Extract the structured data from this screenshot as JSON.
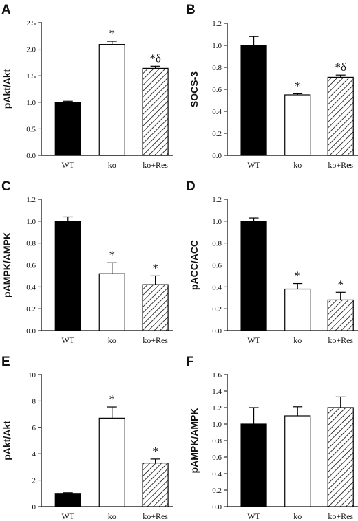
{
  "colors": {
    "bar_wt": "#000000",
    "bar_ko": "#ffffff",
    "bar_ko_res": "hatched",
    "axis": "#000000"
  },
  "chart_data": [
    {
      "panel": "A",
      "type": "bar",
      "categories": [
        "WT",
        "ko",
        "ko+Res"
      ],
      "values": [
        0.99,
        2.09,
        1.64
      ],
      "errors": [
        0.03,
        0.06,
        0.04
      ],
      "annotations": [
        "",
        "*",
        "*δ"
      ],
      "ylabel": "pAkt/Akt",
      "ylim": [
        0,
        2.5
      ],
      "yticks": [
        "0.0",
        "0.5",
        "1.0",
        "1.5",
        "2.0",
        "2.5"
      ]
    },
    {
      "panel": "B",
      "type": "bar",
      "categories": [
        "WT",
        "ko",
        "ko+Res"
      ],
      "values": [
        1.0,
        0.55,
        0.71
      ],
      "errors": [
        0.08,
        0.01,
        0.02
      ],
      "annotations": [
        "",
        "*",
        "*δ"
      ],
      "ylabel": "SOCS-3",
      "ylim": [
        0,
        1.2
      ],
      "yticks": [
        "0.0",
        "0.2",
        "0.4",
        "0.6",
        "0.8",
        "1.0",
        "1.2"
      ]
    },
    {
      "panel": "C",
      "type": "bar",
      "categories": [
        "WT",
        "ko",
        "ko+Res"
      ],
      "values": [
        1.0,
        0.52,
        0.42
      ],
      "errors": [
        0.04,
        0.1,
        0.08
      ],
      "annotations": [
        "",
        "*",
        "*"
      ],
      "ylabel": "pAMPK/AMPK",
      "ylim": [
        0,
        1.2
      ],
      "yticks": [
        "0.0",
        "0.2",
        "0.4",
        "0.6",
        "0.8",
        "1.0",
        "1.2"
      ]
    },
    {
      "panel": "D",
      "type": "bar",
      "categories": [
        "WT",
        "ko",
        "ko+Res"
      ],
      "values": [
        1.0,
        0.38,
        0.28
      ],
      "errors": [
        0.03,
        0.05,
        0.07
      ],
      "annotations": [
        "",
        "*",
        "*"
      ],
      "ylabel": "pACC/ACC",
      "ylim": [
        0,
        1.2
      ],
      "yticks": [
        "0.0",
        "0.2",
        "0.4",
        "0.6",
        "0.8",
        "1.0",
        "1.2"
      ]
    },
    {
      "panel": "E",
      "type": "bar",
      "categories": [
        "WT",
        "ko",
        "ko+Res"
      ],
      "values": [
        1.0,
        6.7,
        3.3
      ],
      "errors": [
        0.05,
        0.85,
        0.3
      ],
      "annotations": [
        "",
        "*",
        "*"
      ],
      "ylabel": "pAkt/Akt",
      "ylim": [
        0,
        10
      ],
      "yticks": [
        "0",
        "2",
        "4",
        "6",
        "8",
        "10"
      ]
    },
    {
      "panel": "F",
      "type": "bar",
      "categories": [
        "WT",
        "ko",
        "ko+Res"
      ],
      "values": [
        1.0,
        1.1,
        1.2
      ],
      "errors": [
        0.2,
        0.11,
        0.13
      ],
      "annotations": [
        "",
        "",
        ""
      ],
      "ylabel": "pAMPK/AMPK",
      "ylim": [
        0,
        1.6
      ],
      "yticks": [
        "0.0",
        "0.2",
        "0.4",
        "0.6",
        "0.8",
        "1.0",
        "1.2",
        "1.4",
        "1.6"
      ]
    }
  ]
}
